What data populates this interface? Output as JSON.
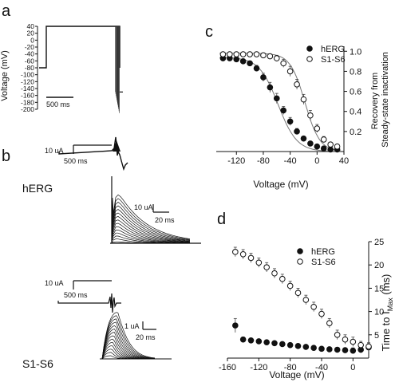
{
  "panel_labels": {
    "a": "a",
    "b": "b",
    "c": "c",
    "d": "d"
  },
  "trace_labels": {
    "herg": "hERG",
    "s1s6": "S1-S6"
  },
  "scale_bars": {
    "a_time": "500 ms",
    "b1_current": "10 uA",
    "b1_time": "500 ms",
    "b2_current": "10 uA",
    "b2_time": "20 ms",
    "b3_current": "10 uA",
    "b3_time": "500 ms",
    "b4_current": "1 uA",
    "b4_time": "20 ms"
  },
  "colors": {
    "herg": "#111111",
    "s1s6": "#ffffff",
    "fit": "#777777",
    "ink": "#111111"
  },
  "chart_data": [
    {
      "id": "a",
      "type": "line",
      "title": "",
      "ylabel": "Voltage (mV)",
      "yticks": [
        40,
        20,
        0,
        -20,
        -40,
        -60,
        -80,
        -100,
        -120,
        -140,
        -160,
        -180,
        -200
      ],
      "ylim": [
        -200,
        40
      ],
      "protocol": {
        "holding_mV": -80,
        "prepulse_mV": 40,
        "prepulse_ms": 1600,
        "test_from_mV": -150,
        "test_to_mV": 40
      }
    },
    {
      "id": "c",
      "type": "scatter",
      "title": "",
      "xlabel": "Voltage (mV)",
      "ylabel": "Recovery from Steady-state inactivation",
      "xticks": [
        -120,
        -80,
        -40,
        0,
        40
      ],
      "yticks": [
        0.2,
        0.4,
        0.6,
        0.8,
        1.0
      ],
      "xlim": [
        -150,
        40
      ],
      "ylim": [
        0,
        1.05
      ],
      "legend": "top-right",
      "series": [
        {
          "name": "hERG",
          "marker": "filled-circle",
          "x": [
            -140,
            -130,
            -120,
            -110,
            -100,
            -90,
            -80,
            -70,
            -60,
            -50,
            -40,
            -30,
            -20,
            -10,
            0,
            10,
            20,
            30
          ],
          "y": [
            0.93,
            0.93,
            0.92,
            0.9,
            0.88,
            0.83,
            0.74,
            0.64,
            0.53,
            0.41,
            0.3,
            0.2,
            0.13,
            0.08,
            0.05,
            0.03,
            0.02,
            0.02
          ],
          "err": [
            0.02,
            0.02,
            0.02,
            0.02,
            0.02,
            0.03,
            0.04,
            0.05,
            0.05,
            0.04,
            0.04,
            0.03,
            0.02,
            0.02,
            0.01,
            0.01,
            0.01,
            0.02
          ]
        },
        {
          "name": "S1-S6",
          "marker": "open-circle",
          "x": [
            -140,
            -130,
            -120,
            -110,
            -100,
            -90,
            -80,
            -70,
            -60,
            -50,
            -40,
            -30,
            -20,
            -10,
            0,
            10,
            20,
            30
          ],
          "y": [
            0.97,
            0.97,
            0.97,
            0.97,
            0.97,
            0.97,
            0.96,
            0.95,
            0.93,
            0.88,
            0.8,
            0.67,
            0.52,
            0.36,
            0.23,
            0.12,
            0.07,
            0.05
          ],
          "err": [
            0.02,
            0.02,
            0.02,
            0.02,
            0.02,
            0.02,
            0.02,
            0.02,
            0.03,
            0.04,
            0.05,
            0.05,
            0.05,
            0.05,
            0.04,
            0.03,
            0.02,
            0.02
          ]
        }
      ]
    },
    {
      "id": "d",
      "type": "scatter",
      "title": "",
      "xlabel": "Voltage (mV)",
      "ylabel": "Time to I",
      "ylabel_sub": "Max",
      "ylabel_unit": " (ms)",
      "xticks": [
        -160,
        -120,
        -80,
        -40,
        0
      ],
      "yticks": [
        5,
        10,
        15,
        20,
        25
      ],
      "xlim": [
        -160,
        20
      ],
      "ylim": [
        0,
        25
      ],
      "legend": "top-right",
      "series": [
        {
          "name": "hERG",
          "marker": "filled-circle",
          "x": [
            -150,
            -140,
            -130,
            -120,
            -110,
            -100,
            -90,
            -80,
            -70,
            -60,
            -50,
            -40,
            -30,
            -20,
            -10,
            0,
            10,
            20
          ],
          "y": [
            7.0,
            4.0,
            3.8,
            3.6,
            3.4,
            3.2,
            3.0,
            2.8,
            2.6,
            2.4,
            2.2,
            2.0,
            1.9,
            1.8,
            1.7,
            1.6,
            1.8,
            2.3
          ],
          "err": [
            1.5,
            0.5,
            0.4,
            0.4,
            0.4,
            0.4,
            0.4,
            0.4,
            0.4,
            0.4,
            0.4,
            0.4,
            0.4,
            0.4,
            0.5,
            0.6,
            0.7,
            0.8
          ]
        },
        {
          "name": "S1-S6",
          "marker": "open-circle",
          "x": [
            -150,
            -140,
            -130,
            -120,
            -110,
            -100,
            -90,
            -80,
            -70,
            -60,
            -50,
            -40,
            -30,
            -20,
            -10,
            0,
            10,
            20
          ],
          "y": [
            22.8,
            22.3,
            21.5,
            20.5,
            19.5,
            18.2,
            17.0,
            15.5,
            14.0,
            12.5,
            11.0,
            9.5,
            7.5,
            5.0,
            4.0,
            3.5,
            2.8,
            2.5
          ],
          "err": [
            1.0,
            1.0,
            1.0,
            1.0,
            1.0,
            1.0,
            1.0,
            1.0,
            1.0,
            1.0,
            1.0,
            1.0,
            1.0,
            1.0,
            1.0,
            1.0,
            0.8,
            0.8
          ]
        }
      ]
    }
  ]
}
